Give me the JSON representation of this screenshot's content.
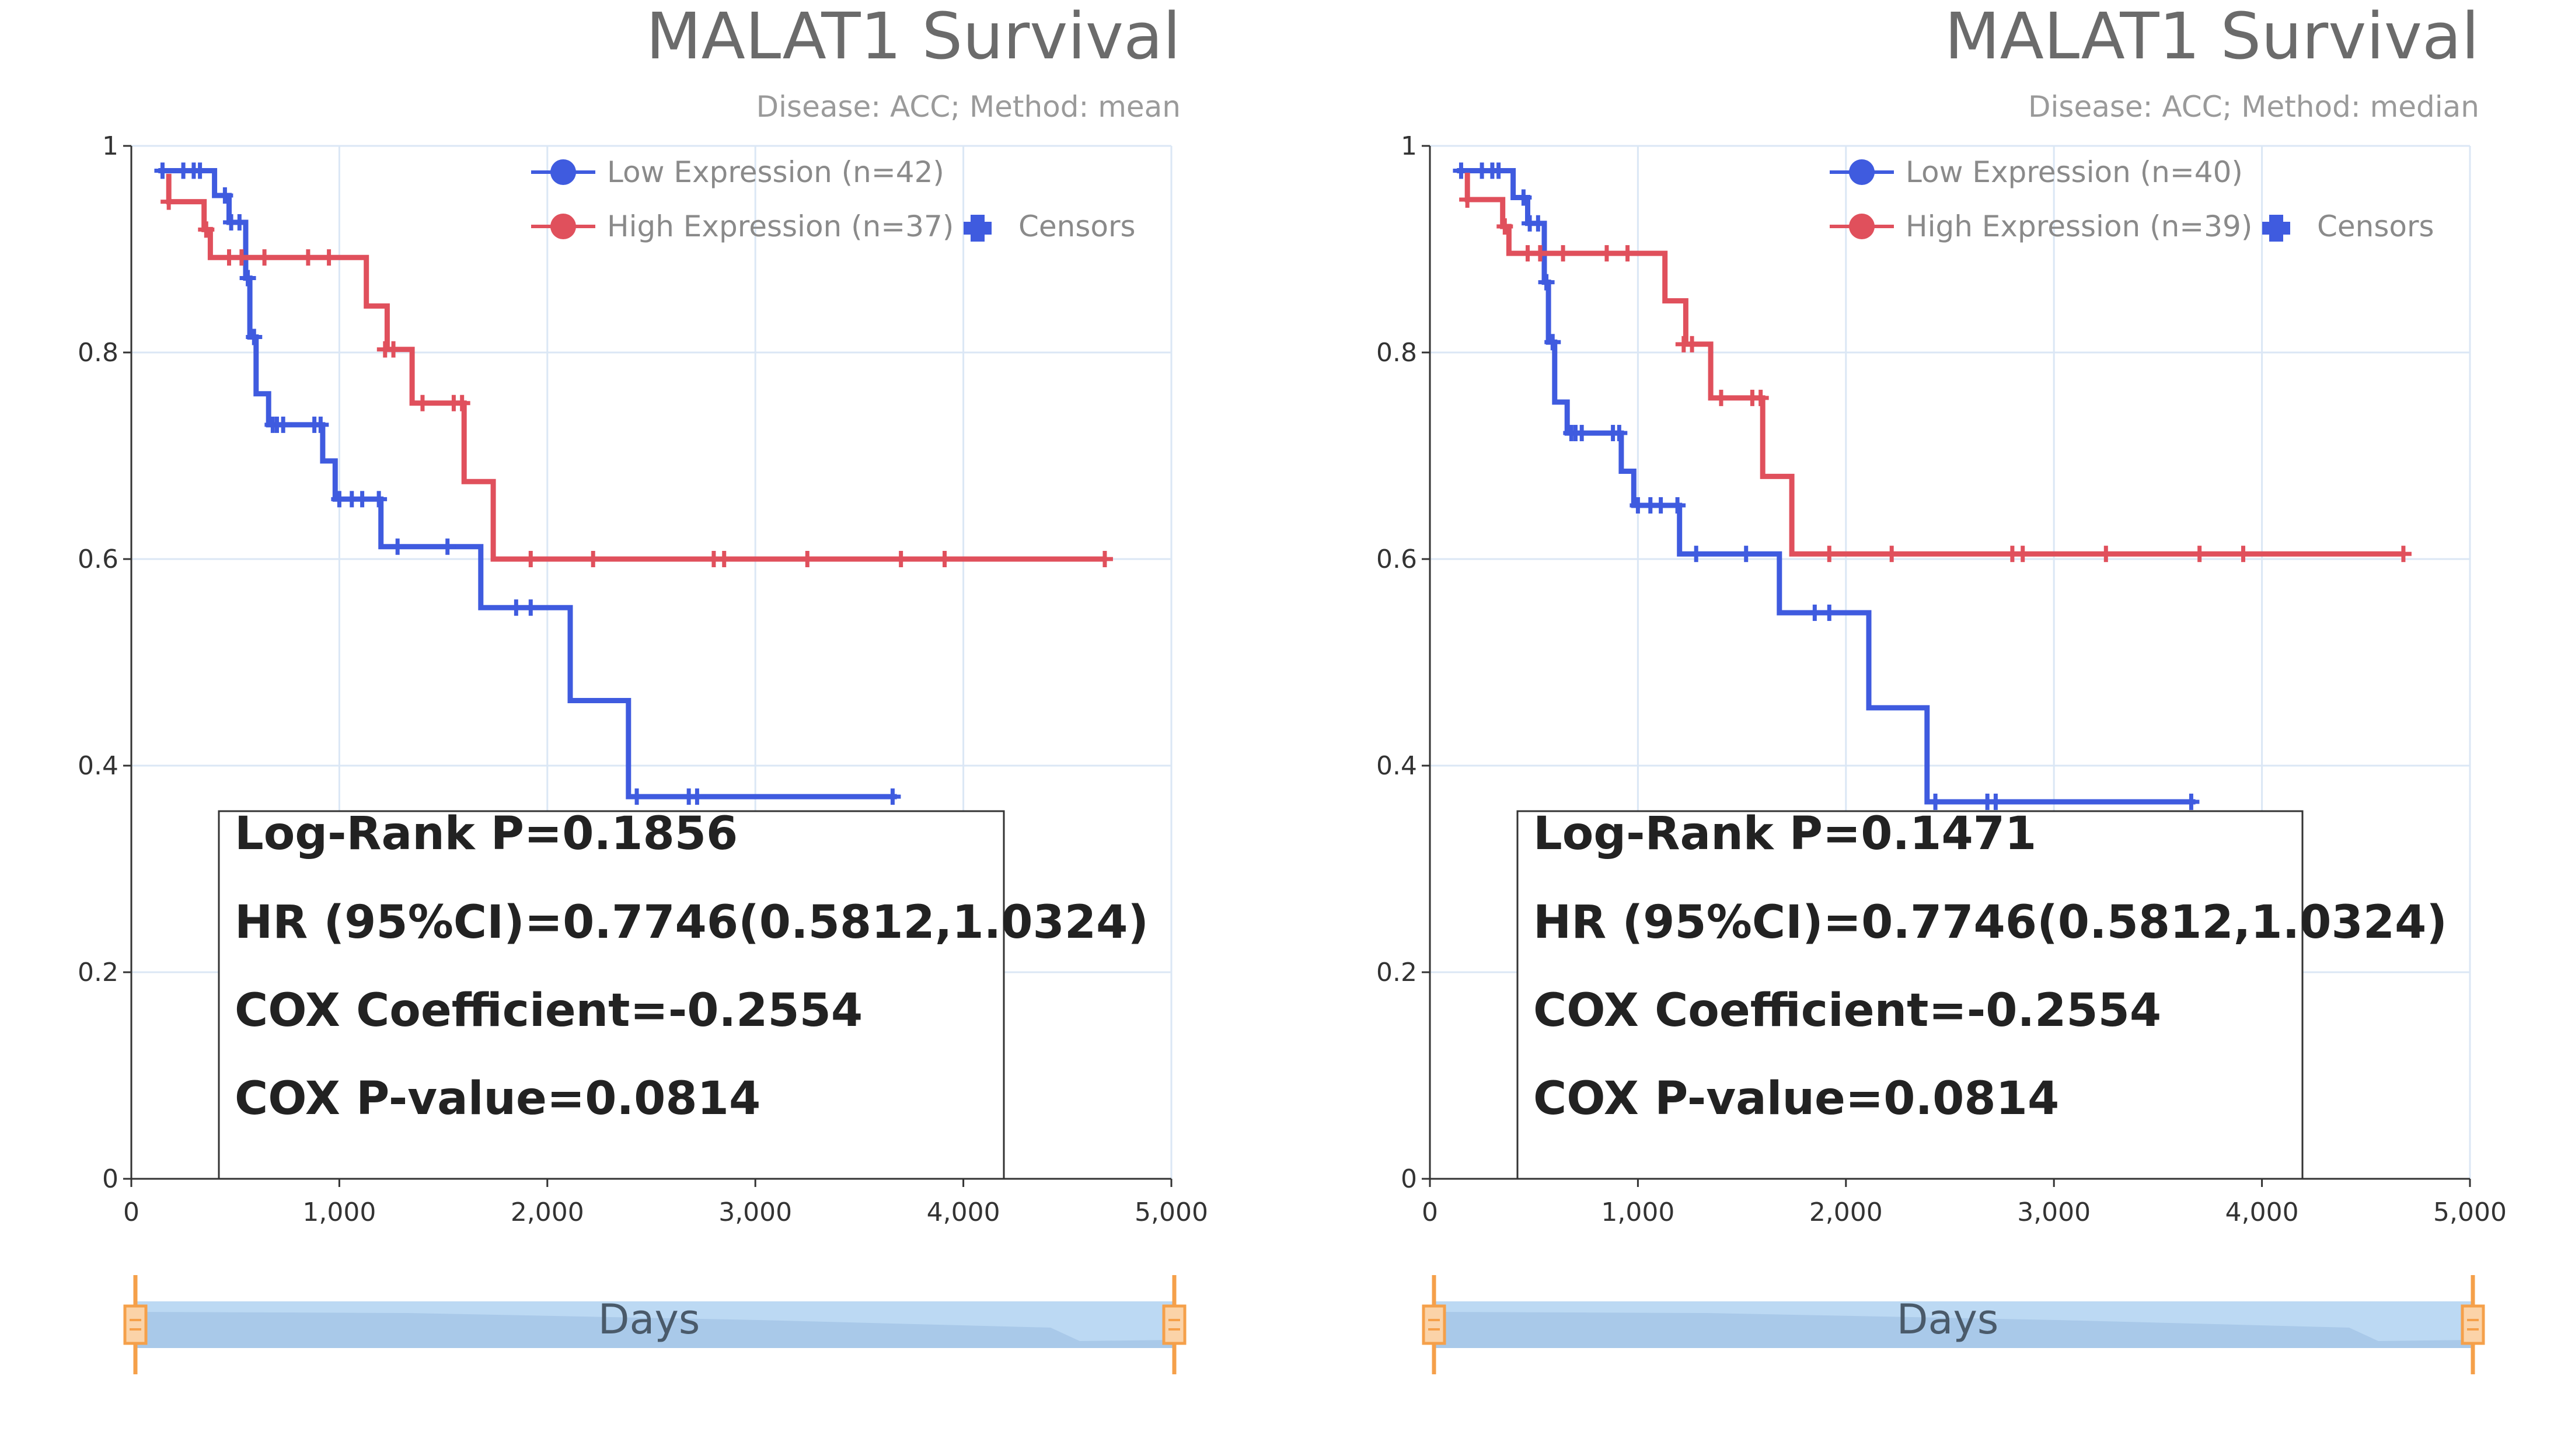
{
  "colors": {
    "low": "#3f5bdf",
    "high": "#e0505c",
    "grid": "#dbe7f5",
    "axis": "#333333",
    "zoom_fill": "#bcd9f3",
    "zoom_handle": "#f5a04a"
  },
  "chart_data": [
    {
      "type": "line",
      "title": "MALAT1 Survival",
      "subtitle": "Disease: ACC; Method: mean",
      "xlabel": "Days",
      "xlim": [
        0,
        5000
      ],
      "ylim": [
        0,
        1
      ],
      "x_ticks": [
        "0",
        "1,000",
        "2,000",
        "3,000",
        "4,000",
        "5,000"
      ],
      "y_ticks": [
        "0",
        "0.2",
        "0.4",
        "0.6",
        "0.8",
        "1"
      ],
      "grid": true,
      "legend_position": "top-right",
      "legend": {
        "low": "Low Expression (n=42)",
        "high": "High Expression (n=37)",
        "censor": "Censors"
      },
      "stats": [
        "Log-Rank P=0.1856",
        "HR (95%CI)=0.7746(0.5812,1.0324)",
        "COX Coefficient=-0.2554",
        "COX P-value=0.0814"
      ],
      "series": [
        {
          "name": "Low Expression (n=42)",
          "key": "low",
          "steps": [
            [
              130,
              0.976
            ],
            [
              400,
              0.976
            ],
            [
              400,
              0.952
            ],
            [
              470,
              0.952
            ],
            [
              470,
              0.926
            ],
            [
              550,
              0.926
            ],
            [
              550,
              0.872
            ],
            [
              570,
              0.872
            ],
            [
              570,
              0.815
            ],
            [
              600,
              0.815
            ],
            [
              600,
              0.76
            ],
            [
              660,
              0.76
            ],
            [
              660,
              0.73
            ],
            [
              920,
              0.73
            ],
            [
              920,
              0.695
            ],
            [
              980,
              0.695
            ],
            [
              980,
              0.658
            ],
            [
              1200,
              0.658
            ],
            [
              1200,
              0.612
            ],
            [
              1680,
              0.612
            ],
            [
              1680,
              0.553
            ],
            [
              2110,
              0.553
            ],
            [
              2110,
              0.463
            ],
            [
              2390,
              0.463
            ],
            [
              2390,
              0.37
            ],
            [
              3680,
              0.37
            ]
          ],
          "censors": [
            [
              150,
              0.976
            ],
            [
              250,
              0.976
            ],
            [
              300,
              0.976
            ],
            [
              330,
              0.976
            ],
            [
              450,
              0.952
            ],
            [
              480,
              0.926
            ],
            [
              520,
              0.926
            ],
            [
              560,
              0.872
            ],
            [
              590,
              0.815
            ],
            [
              680,
              0.73
            ],
            [
              700,
              0.73
            ],
            [
              730,
              0.73
            ],
            [
              880,
              0.73
            ],
            [
              910,
              0.73
            ],
            [
              1000,
              0.658
            ],
            [
              1060,
              0.658
            ],
            [
              1110,
              0.658
            ],
            [
              1190,
              0.658
            ],
            [
              1280,
              0.612
            ],
            [
              1520,
              0.612
            ],
            [
              1850,
              0.553
            ],
            [
              1920,
              0.553
            ],
            [
              2430,
              0.37
            ],
            [
              2680,
              0.37
            ],
            [
              2720,
              0.37
            ],
            [
              3660,
              0.37
            ]
          ]
        },
        {
          "name": "High Expression (n=37)",
          "key": "high",
          "steps": [
            [
              180,
              0.973
            ],
            [
              180,
              0.946
            ],
            [
              350,
              0.946
            ],
            [
              350,
              0.919
            ],
            [
              380,
              0.919
            ],
            [
              380,
              0.892
            ],
            [
              1130,
              0.892
            ],
            [
              1130,
              0.845
            ],
            [
              1230,
              0.845
            ],
            [
              1230,
              0.803
            ],
            [
              1350,
              0.803
            ],
            [
              1350,
              0.751
            ],
            [
              1600,
              0.751
            ],
            [
              1600,
              0.675
            ],
            [
              1740,
              0.675
            ],
            [
              1740,
              0.6
            ],
            [
              4690,
              0.6
            ]
          ],
          "censors": [
            [
              180,
              0.946
            ],
            [
              360,
              0.919
            ],
            [
              470,
              0.892
            ],
            [
              530,
              0.892
            ],
            [
              640,
              0.892
            ],
            [
              850,
              0.892
            ],
            [
              950,
              0.892
            ],
            [
              1220,
              0.803
            ],
            [
              1260,
              0.803
            ],
            [
              1400,
              0.751
            ],
            [
              1550,
              0.751
            ],
            [
              1590,
              0.751
            ],
            [
              1920,
              0.6
            ],
            [
              2220,
              0.6
            ],
            [
              2800,
              0.6
            ],
            [
              2850,
              0.6
            ],
            [
              3250,
              0.6
            ],
            [
              3700,
              0.6
            ],
            [
              3910,
              0.6
            ],
            [
              4680,
              0.6
            ]
          ]
        }
      ]
    },
    {
      "type": "line",
      "title": "MALAT1 Survival",
      "subtitle": "Disease: ACC; Method: median",
      "xlabel": "Days",
      "xlim": [
        0,
        5000
      ],
      "ylim": [
        0,
        1
      ],
      "x_ticks": [
        "0",
        "1,000",
        "2,000",
        "3,000",
        "4,000",
        "5,000"
      ],
      "y_ticks": [
        "0",
        "0.2",
        "0.4",
        "0.6",
        "0.8",
        "1"
      ],
      "grid": true,
      "legend_position": "top-right",
      "legend": {
        "low": "Low Expression (n=40)",
        "high": "High Expression (n=39)",
        "censor": "Censors"
      },
      "stats": [
        "Log-Rank P=0.1471",
        "HR (95%CI)=0.7746(0.5812,1.0324)",
        "COX Coefficient=-0.2554",
        "COX P-value=0.0814"
      ],
      "series": [
        {
          "name": "Low Expression (n=40)",
          "key": "low",
          "steps": [
            [
              130,
              0.976
            ],
            [
              400,
              0.976
            ],
            [
              400,
              0.95
            ],
            [
              470,
              0.95
            ],
            [
              470,
              0.925
            ],
            [
              550,
              0.925
            ],
            [
              550,
              0.868
            ],
            [
              570,
              0.868
            ],
            [
              570,
              0.81
            ],
            [
              600,
              0.81
            ],
            [
              600,
              0.752
            ],
            [
              660,
              0.752
            ],
            [
              660,
              0.722
            ],
            [
              920,
              0.722
            ],
            [
              920,
              0.685
            ],
            [
              980,
              0.685
            ],
            [
              980,
              0.652
            ],
            [
              1200,
              0.652
            ],
            [
              1200,
              0.605
            ],
            [
              1680,
              0.605
            ],
            [
              1680,
              0.548
            ],
            [
              2110,
              0.548
            ],
            [
              2110,
              0.456
            ],
            [
              2390,
              0.456
            ],
            [
              2390,
              0.365
            ],
            [
              3680,
              0.365
            ]
          ],
          "censors": [
            [
              150,
              0.976
            ],
            [
              250,
              0.976
            ],
            [
              300,
              0.976
            ],
            [
              330,
              0.976
            ],
            [
              450,
              0.95
            ],
            [
              480,
              0.925
            ],
            [
              520,
              0.925
            ],
            [
              560,
              0.868
            ],
            [
              590,
              0.81
            ],
            [
              680,
              0.722
            ],
            [
              700,
              0.722
            ],
            [
              730,
              0.722
            ],
            [
              880,
              0.722
            ],
            [
              910,
              0.722
            ],
            [
              1000,
              0.652
            ],
            [
              1060,
              0.652
            ],
            [
              1110,
              0.652
            ],
            [
              1190,
              0.652
            ],
            [
              1280,
              0.605
            ],
            [
              1520,
              0.605
            ],
            [
              1850,
              0.548
            ],
            [
              1920,
              0.548
            ],
            [
              2430,
              0.365
            ],
            [
              2680,
              0.365
            ],
            [
              2720,
              0.365
            ],
            [
              3660,
              0.365
            ]
          ]
        },
        {
          "name": "High Expression (n=39)",
          "key": "high",
          "steps": [
            [
              180,
              0.974
            ],
            [
              180,
              0.948
            ],
            [
              350,
              0.948
            ],
            [
              350,
              0.922
            ],
            [
              380,
              0.922
            ],
            [
              380,
              0.896
            ],
            [
              1130,
              0.896
            ],
            [
              1130,
              0.85
            ],
            [
              1230,
              0.85
            ],
            [
              1230,
              0.808
            ],
            [
              1350,
              0.808
            ],
            [
              1350,
              0.756
            ],
            [
              1600,
              0.756
            ],
            [
              1600,
              0.68
            ],
            [
              1740,
              0.68
            ],
            [
              1740,
              0.605
            ],
            [
              4690,
              0.605
            ]
          ],
          "censors": [
            [
              180,
              0.948
            ],
            [
              360,
              0.922
            ],
            [
              470,
              0.896
            ],
            [
              530,
              0.896
            ],
            [
              640,
              0.896
            ],
            [
              850,
              0.896
            ],
            [
              950,
              0.896
            ],
            [
              1220,
              0.808
            ],
            [
              1260,
              0.808
            ],
            [
              1400,
              0.756
            ],
            [
              1550,
              0.756
            ],
            [
              1590,
              0.756
            ],
            [
              1920,
              0.605
            ],
            [
              2220,
              0.605
            ],
            [
              2800,
              0.605
            ],
            [
              2850,
              0.605
            ],
            [
              3250,
              0.605
            ],
            [
              3700,
              0.605
            ],
            [
              3910,
              0.605
            ],
            [
              4680,
              0.605
            ]
          ]
        }
      ]
    }
  ]
}
